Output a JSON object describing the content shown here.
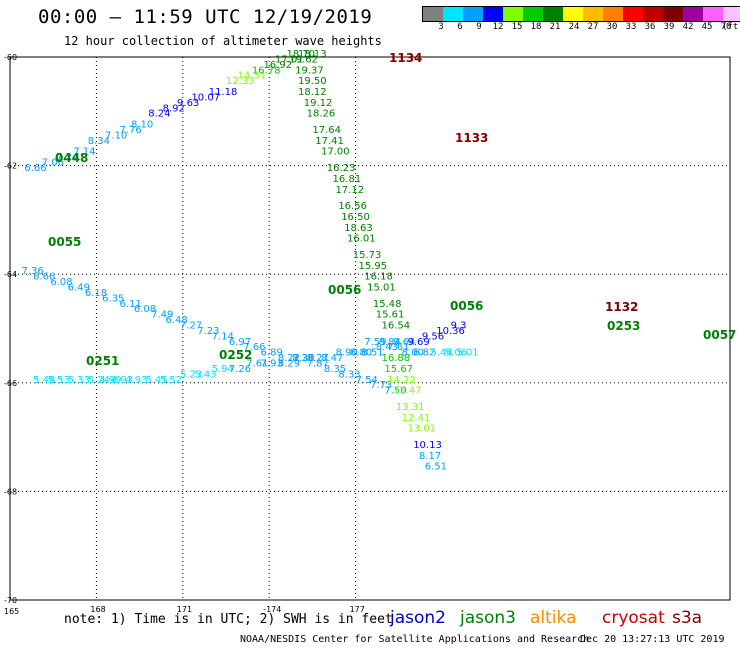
{
  "header": {
    "title": "00:00 – 11:59 UTC 12/19/2019",
    "subtitle": "12 hour collection of altimeter wave heights"
  },
  "legend": {
    "unit": "(ft)",
    "colors": [
      "#808080",
      "#00e5ff",
      "#00a0ff",
      "#0000ff",
      "#80ff00",
      "#00cc00",
      "#008000",
      "#ffff00",
      "#ffbb00",
      "#ff8000",
      "#ff0000",
      "#c00000",
      "#800000",
      "#a000a0",
      "#ff60ff",
      "#ffc0ff",
      "#000000"
    ],
    "labels": [
      "3",
      "6",
      "9",
      "12",
      "15",
      "18",
      "21",
      "24",
      "27",
      "30",
      "33",
      "36",
      "39",
      "42",
      "45",
      "70"
    ]
  },
  "axes": {
    "lat_labels": [
      "-60",
      "-62",
      "-64",
      "-66",
      "-68",
      "-70"
    ],
    "lon_labels": [
      "165",
      "168",
      "171",
      "-174",
      "177"
    ]
  },
  "chart_data": {
    "type": "scatter",
    "description_units": "SWH in feet at lon/lat",
    "x_range": [
      165,
      190
    ],
    "y_range": [
      -70,
      -60
    ],
    "tracks": [
      {
        "time_label": "0448",
        "time_color": "#008000",
        "points": [
          {
            "lon": 165.5,
            "lat": -62.1,
            "value": "6.66",
            "color": "#00a0ff"
          },
          {
            "lon": 166.1,
            "lat": -62.0,
            "value": "7.06",
            "color": "#00a0ff"
          },
          {
            "lon": 166.6,
            "lat": -61.9,
            "value": "7.24",
            "color": "#00a0ff"
          },
          {
            "lon": 167.2,
            "lat": -61.8,
            "value": "7.14",
            "color": "#00a0ff"
          },
          {
            "lon": 167.7,
            "lat": -61.6,
            "value": "8.34",
            "color": "#00a0ff"
          },
          {
            "lon": 168.3,
            "lat": -61.5,
            "value": "7.10",
            "color": "#00a0ff"
          },
          {
            "lon": 168.8,
            "lat": -61.4,
            "value": "7.76",
            "color": "#00a0ff"
          },
          {
            "lon": 169.2,
            "lat": -61.3,
            "value": "8.10",
            "color": "#00a0ff"
          },
          {
            "lon": 169.8,
            "lat": -61.1,
            "value": "8.24",
            "color": "#0000ff"
          },
          {
            "lon": 170.3,
            "lat": -61.0,
            "value": "8.92",
            "color": "#0000ff"
          },
          {
            "lon": 170.8,
            "lat": -60.9,
            "value": "9.63",
            "color": "#0000ff"
          },
          {
            "lon": 171.3,
            "lat": -60.8,
            "value": "10.07",
            "color": "#0000ff"
          },
          {
            "lon": 171.9,
            "lat": -60.7,
            "value": "11.18",
            "color": "#0000ff"
          },
          {
            "lon": 172.5,
            "lat": -60.5,
            "value": "12.33",
            "color": "#80ff00"
          },
          {
            "lon": 172.9,
            "lat": -60.4,
            "value": "14.31",
            "color": "#80ff00"
          },
          {
            "lon": 173.4,
            "lat": -60.3,
            "value": "16.78",
            "color": "#00cc00"
          },
          {
            "lon": 173.8,
            "lat": -60.2,
            "value": "16.92",
            "color": "#008000"
          },
          {
            "lon": 174.2,
            "lat": -60.1,
            "value": "17.01",
            "color": "#008000"
          },
          {
            "lon": 174.6,
            "lat": -60.0,
            "value": "18.70",
            "color": "#008000"
          },
          {
            "lon": 175.0,
            "lat": -60.0,
            "value": "18.13",
            "color": "#008000"
          }
        ]
      },
      {
        "time_label": "1134",
        "time_color": "#800000",
        "points": [
          {
            "lon": 174.7,
            "lat": -60.1,
            "value": "19.62",
            "color": "#008000"
          },
          {
            "lon": 174.9,
            "lat": -60.3,
            "value": "19.37",
            "color": "#008000"
          },
          {
            "lon": 175.0,
            "lat": -60.5,
            "value": "19.50",
            "color": "#008000"
          },
          {
            "lon": 175.0,
            "lat": -60.7,
            "value": "18.12",
            "color": "#008000"
          },
          {
            "lon": 175.2,
            "lat": -60.9,
            "value": "19.12",
            "color": "#008000"
          },
          {
            "lon": 175.3,
            "lat": -61.1,
            "value": "18.26",
            "color": "#008000"
          },
          {
            "lon": 175.5,
            "lat": -61.4,
            "value": "17.64",
            "color": "#008000"
          },
          {
            "lon": 175.6,
            "lat": -61.6,
            "value": "17.41",
            "color": "#008000"
          },
          {
            "lon": 175.8,
            "lat": -61.8,
            "value": "17.00",
            "color": "#008000"
          },
          {
            "lon": 176.0,
            "lat": -62.1,
            "value": "16.23",
            "color": "#008000"
          },
          {
            "lon": 176.2,
            "lat": -62.3,
            "value": "16.81",
            "color": "#008000"
          },
          {
            "lon": 176.3,
            "lat": -62.5,
            "value": "17.12",
            "color": "#008000"
          },
          {
            "lon": 176.4,
            "lat": -62.8,
            "value": "16.56",
            "color": "#008000"
          },
          {
            "lon": 176.5,
            "lat": -63.0,
            "value": "16.50",
            "color": "#008000"
          },
          {
            "lon": 176.6,
            "lat": -63.2,
            "value": "18.63",
            "color": "#008000"
          },
          {
            "lon": 176.7,
            "lat": -63.4,
            "value": "16.01",
            "color": "#008000"
          },
          {
            "lon": 176.9,
            "lat": -63.7,
            "value": "15.73",
            "color": "#008000"
          },
          {
            "lon": 177.1,
            "lat": -63.9,
            "value": "15.95",
            "color": "#008000"
          },
          {
            "lon": 177.3,
            "lat": -64.1,
            "value": "16.18",
            "color": "#008000"
          },
          {
            "lon": 177.4,
            "lat": -64.3,
            "value": "15.01",
            "color": "#008000"
          },
          {
            "lon": 177.6,
            "lat": -64.6,
            "value": "15.48",
            "color": "#008000"
          },
          {
            "lon": 177.7,
            "lat": -64.8,
            "value": "15.61",
            "color": "#008000"
          },
          {
            "lon": 177.9,
            "lat": -65.0,
            "value": "16.54",
            "color": "#008000"
          }
        ]
      },
      {
        "time_label": "0055",
        "time_color": "#008000",
        "points": [
          {
            "lon": 165.4,
            "lat": -64.0,
            "value": "7.36",
            "color": "#00a0ff"
          },
          {
            "lon": 165.8,
            "lat": -64.1,
            "value": "6.66",
            "color": "#00a0ff"
          },
          {
            "lon": 166.4,
            "lat": -64.2,
            "value": "6.08",
            "color": "#00a0ff"
          },
          {
            "lon": 167.0,
            "lat": -64.3,
            "value": "6.49",
            "color": "#00a0ff"
          },
          {
            "lon": 167.6,
            "lat": -64.4,
            "value": "6.18",
            "color": "#00a0ff"
          },
          {
            "lon": 168.2,
            "lat": -64.5,
            "value": "6.35",
            "color": "#00a0ff"
          },
          {
            "lon": 168.8,
            "lat": -64.6,
            "value": "6.11",
            "color": "#00a0ff"
          },
          {
            "lon": 169.3,
            "lat": -64.7,
            "value": "6.08",
            "color": "#00a0ff"
          },
          {
            "lon": 169.9,
            "lat": -64.8,
            "value": "7.49",
            "color": "#00a0ff"
          },
          {
            "lon": 170.4,
            "lat": -64.9,
            "value": "6.48",
            "color": "#00a0ff"
          },
          {
            "lon": 170.9,
            "lat": -65.0,
            "value": "7.27",
            "color": "#00a0ff"
          },
          {
            "lon": 171.5,
            "lat": -65.1,
            "value": "7.23",
            "color": "#00a0ff"
          },
          {
            "lon": 172.0,
            "lat": -65.2,
            "value": "7.14",
            "color": "#00a0ff"
          },
          {
            "lon": 172.6,
            "lat": -65.3,
            "value": "6.97",
            "color": "#00a0ff"
          },
          {
            "lon": 173.1,
            "lat": -65.4,
            "value": "7.66",
            "color": "#00a0ff"
          },
          {
            "lon": 173.7,
            "lat": -65.5,
            "value": "6.89",
            "color": "#00a0ff"
          },
          {
            "lon": 174.3,
            "lat": -65.6,
            "value": "8.22",
            "color": "#00a0ff"
          },
          {
            "lon": 174.8,
            "lat": -65.6,
            "value": "7.20",
            "color": "#00a0ff"
          },
          {
            "lon": 175.3,
            "lat": -65.7,
            "value": "7.87",
            "color": "#00a0ff"
          },
          {
            "lon": 175.9,
            "lat": -65.8,
            "value": "8.35",
            "color": "#00a0ff"
          },
          {
            "lon": 176.4,
            "lat": -65.9,
            "value": "8.33",
            "color": "#00a0ff"
          },
          {
            "lon": 177.0,
            "lat": -66.0,
            "value": "7.54",
            "color": "#00a0ff"
          },
          {
            "lon": 177.5,
            "lat": -66.1,
            "value": "7.73",
            "color": "#00a0ff"
          },
          {
            "lon": 178.0,
            "lat": -66.2,
            "value": "7.50",
            "color": "#00a0ff"
          }
        ]
      },
      {
        "time_label": "0056",
        "time_color": "#008000",
        "points": []
      },
      {
        "time_label": "0056",
        "time_color": "#008000",
        "points": []
      },
      {
        "time_label": "0251",
        "time_color": "#008000",
        "points": [
          {
            "lon": 165.8,
            "lat": -66.0,
            "value": "5.48",
            "color": "#00e5ff"
          },
          {
            "lon": 166.3,
            "lat": -66.0,
            "value": "5.53",
            "color": "#00e5ff"
          },
          {
            "lon": 167.0,
            "lat": -66.0,
            "value": "5.33",
            "color": "#00e5ff"
          },
          {
            "lon": 167.7,
            "lat": -66.0,
            "value": "5.24",
            "color": "#00e5ff"
          },
          {
            "lon": 168.1,
            "lat": -66.0,
            "value": "4.99",
            "color": "#00e5ff"
          },
          {
            "lon": 168.5,
            "lat": -66.0,
            "value": "4.93",
            "color": "#00e5ff"
          },
          {
            "lon": 169.0,
            "lat": -66.0,
            "value": "4.93",
            "color": "#00e5ff"
          },
          {
            "lon": 169.7,
            "lat": -66.0,
            "value": "5.45",
            "color": "#00e5ff"
          },
          {
            "lon": 170.2,
            "lat": -66.0,
            "value": "5.52",
            "color": "#00e5ff"
          },
          {
            "lon": 170.9,
            "lat": -65.9,
            "value": "5.23",
            "color": "#00e5ff"
          },
          {
            "lon": 171.4,
            "lat": -65.9,
            "value": "5.43",
            "color": "#00e5ff"
          },
          {
            "lon": 172.0,
            "lat": -65.8,
            "value": "5.94",
            "color": "#00e5ff"
          },
          {
            "lon": 172.6,
            "lat": -65.8,
            "value": "7.26",
            "color": "#00a0ff"
          },
          {
            "lon": 173.2,
            "lat": -65.7,
            "value": "7.61",
            "color": "#00a0ff"
          },
          {
            "lon": 173.7,
            "lat": -65.7,
            "value": "7.93",
            "color": "#00a0ff"
          },
          {
            "lon": 174.3,
            "lat": -65.7,
            "value": "8.29",
            "color": "#00a0ff"
          },
          {
            "lon": 174.8,
            "lat": -65.6,
            "value": "8.38",
            "color": "#00a0ff"
          },
          {
            "lon": 175.3,
            "lat": -65.6,
            "value": "8.27",
            "color": "#00a0ff"
          },
          {
            "lon": 175.8,
            "lat": -65.6,
            "value": "8.47",
            "color": "#00a0ff"
          },
          {
            "lon": 176.3,
            "lat": -65.5,
            "value": "8.90",
            "color": "#00a0ff"
          },
          {
            "lon": 176.8,
            "lat": -65.5,
            "value": "8.80",
            "color": "#00a0ff"
          },
          {
            "lon": 177.2,
            "lat": -65.5,
            "value": "8.51",
            "color": "#00a0ff"
          }
        ]
      },
      {
        "time_label": "0252",
        "time_color": "#008000",
        "points": []
      },
      {
        "time_label": "1133",
        "time_color": "#800000",
        "points": []
      },
      {
        "time_label": "1132",
        "time_color": "#800000",
        "points": [
          {
            "lon": 177.9,
            "lat": -65.6,
            "value": "16.88",
            "color": "#00cc00"
          },
          {
            "lon": 178.0,
            "lat": -65.8,
            "value": "15.67",
            "color": "#00cc00"
          },
          {
            "lon": 178.1,
            "lat": -66.0,
            "value": "14.22",
            "color": "#80ff00"
          },
          {
            "lon": 178.3,
            "lat": -66.2,
            "value": "13.47",
            "color": "#80ff00"
          },
          {
            "lon": 178.4,
            "lat": -66.5,
            "value": "13.31",
            "color": "#80ff00"
          },
          {
            "lon": 178.6,
            "lat": -66.7,
            "value": "12.41",
            "color": "#80ff00"
          },
          {
            "lon": 178.8,
            "lat": -66.9,
            "value": "13.01",
            "color": "#80ff00"
          },
          {
            "lon": 179.0,
            "lat": -67.2,
            "value": "10.13",
            "color": "#0000ff"
          },
          {
            "lon": 179.2,
            "lat": -67.4,
            "value": "8.17",
            "color": "#00a0ff"
          },
          {
            "lon": 179.4,
            "lat": -67.6,
            "value": "6.51",
            "color": "#00a0ff"
          }
        ]
      },
      {
        "time_label": "0253",
        "time_color": "#008000",
        "points": [
          {
            "lon": 177.7,
            "lat": -65.4,
            "value": "8.43",
            "color": "#00a0ff"
          },
          {
            "lon": 178.1,
            "lat": -65.4,
            "value": "7.61",
            "color": "#00a0ff"
          },
          {
            "lon": 178.6,
            "lat": -65.5,
            "value": "8.00",
            "color": "#00a0ff"
          },
          {
            "lon": 179.0,
            "lat": -65.5,
            "value": "6.82",
            "color": "#00a0ff"
          },
          {
            "lon": 179.6,
            "lat": -65.5,
            "value": "5.44",
            "color": "#00e5ff"
          },
          {
            "lon": 180.1,
            "lat": -65.5,
            "value": "5.06",
            "color": "#00e5ff"
          },
          {
            "lon": 180.5,
            "lat": -65.5,
            "value": "5.01",
            "color": "#00e5ff"
          }
        ]
      },
      {
        "time_label": "0057",
        "time_color": "#008000",
        "points": [
          {
            "lon": 177.3,
            "lat": -65.3,
            "value": "7.59",
            "color": "#00a0ff"
          },
          {
            "lon": 177.8,
            "lat": -65.3,
            "value": "8.84",
            "color": "#00a0ff"
          },
          {
            "lon": 178.3,
            "lat": -65.3,
            "value": "9.64",
            "color": "#00a0ff"
          },
          {
            "lon": 178.8,
            "lat": -65.3,
            "value": "9.69",
            "color": "#0000ff"
          },
          {
            "lon": 179.3,
            "lat": -65.2,
            "value": "9.56",
            "color": "#0000ff"
          },
          {
            "lon": 179.8,
            "lat": -65.1,
            "value": "10.36",
            "color": "#0000ff"
          },
          {
            "lon": 180.3,
            "lat": -65.0,
            "value": "9.3",
            "color": "#0000ff"
          }
        ]
      }
    ]
  },
  "footer": {
    "note": "note: 1) Time is in UTC; 2) SWH is in feet",
    "satellites": [
      {
        "name": "jason2",
        "color": "#0000cc"
      },
      {
        "name": "jason3",
        "color": "#008000"
      },
      {
        "name": "altika",
        "color": "#ff8c00"
      },
      {
        "name": "cryosat",
        "color": "#cc0000"
      },
      {
        "name": "s3a",
        "color": "#800000"
      }
    ],
    "credit": "NOAA/NESDIS Center for Satellite Applications and Research",
    "timestamp": "Dec 20 13:27:13 UTC 2019"
  }
}
